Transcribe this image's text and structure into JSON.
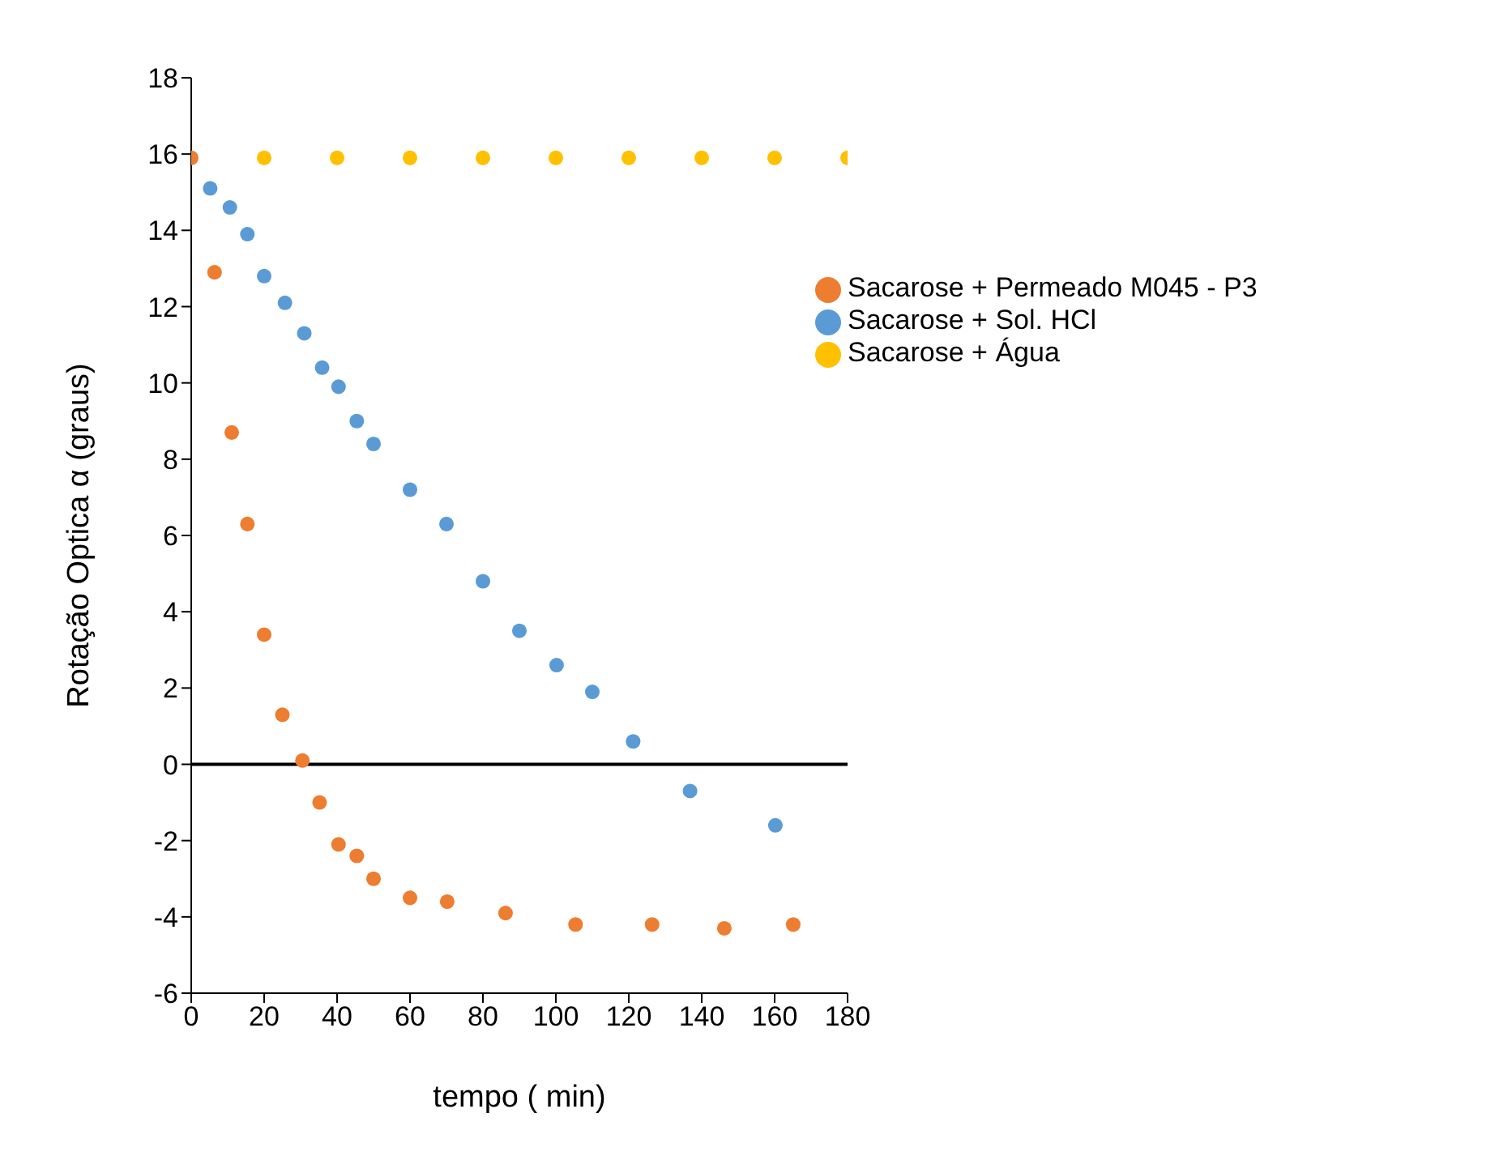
{
  "chart_data": {
    "type": "scatter",
    "xlabel": "tempo ( min)",
    "ylabel": "Rotação Optica α (graus)",
    "xlim": [
      0,
      180
    ],
    "xticks": [
      0,
      20,
      40,
      60,
      80,
      100,
      120,
      140,
      160,
      180
    ],
    "ylim": [
      -6,
      18
    ],
    "yticks": [
      -6,
      -4,
      -2,
      0,
      2,
      4,
      6,
      8,
      10,
      12,
      14,
      16,
      18
    ],
    "grid": false,
    "legend": "top right",
    "marker": "circle",
    "ref_lines": [
      {
        "axis": "y",
        "value": 0,
        "color": "#000000"
      }
    ],
    "series": [
      {
        "name": "Sacarose + Água",
        "color": "#ffc000",
        "x": [
          20,
          40,
          60,
          80,
          100,
          120,
          140,
          160,
          180
        ],
        "values": [
          15.9,
          15.9,
          15.9,
          15.9,
          15.9,
          15.9,
          15.9,
          15.9,
          15.9
        ]
      },
      {
        "name": "Sacarose + Sol. HCl",
        "color": "#5b9bd5",
        "x": [
          5.2,
          10.6,
          15.4,
          20,
          25.7,
          31,
          35.9,
          40.4,
          45.4,
          50,
          60,
          70,
          80,
          90,
          100.2,
          110,
          121.2,
          136.8,
          160.2
        ],
        "values": [
          15.1,
          14.6,
          13.9,
          12.8,
          12.1,
          11.3,
          10.4,
          9.9,
          9.0,
          8.4,
          7.2,
          6.3,
          4.8,
          3.5,
          2.6,
          1.9,
          0.6,
          -0.7,
          -1.6
        ]
      },
      {
        "name": "Sacarose + Permeado M045 - P3",
        "color": "#ed7d31",
        "x": [
          0,
          6.4,
          11.1,
          15.4,
          20,
          25,
          30.5,
          35.2,
          40.4,
          45.4,
          50,
          60,
          70.2,
          86.2,
          105.4,
          126.4,
          146.2,
          165.1
        ],
        "values": [
          15.9,
          12.9,
          8.7,
          6.3,
          3.4,
          1.3,
          0.1,
          -1.0,
          -2.1,
          -2.4,
          -3.0,
          -3.5,
          -3.6,
          -3.9,
          -4.2,
          -4.2,
          -4.3,
          -4.2
        ]
      }
    ]
  }
}
